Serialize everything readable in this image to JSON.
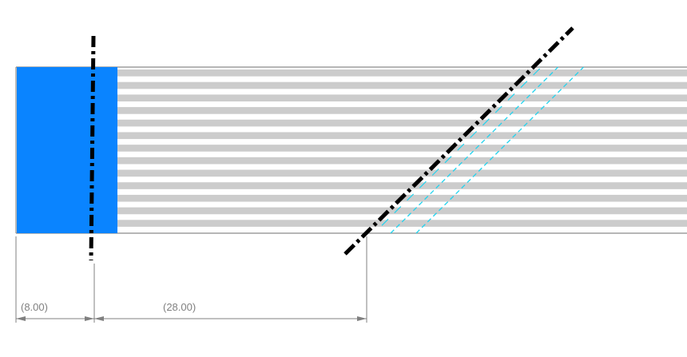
{
  "colors": {
    "background": "#ffffff",
    "block_fill": "#0a84ff",
    "stripe_light": "#cccccc",
    "stripe_dark": "#ffffff",
    "outline": "#8a8a8a",
    "cut_line": "#000000",
    "hidden_lines": "#22d3ee",
    "dimension": "#808080"
  },
  "stripes": {
    "count": 13
  },
  "dimensions": [
    {
      "label": "(8.00)",
      "value": 8.0
    },
    {
      "label": "(28.00)",
      "value": 28.0
    }
  ],
  "icons": {
    "vertical_axis": "dash-dot-centerline",
    "diagonal_axis": "dash-dot-cut-line",
    "hidden_edges": "cyan-dashed-lines",
    "dimension_arrows": "arrowhead"
  }
}
